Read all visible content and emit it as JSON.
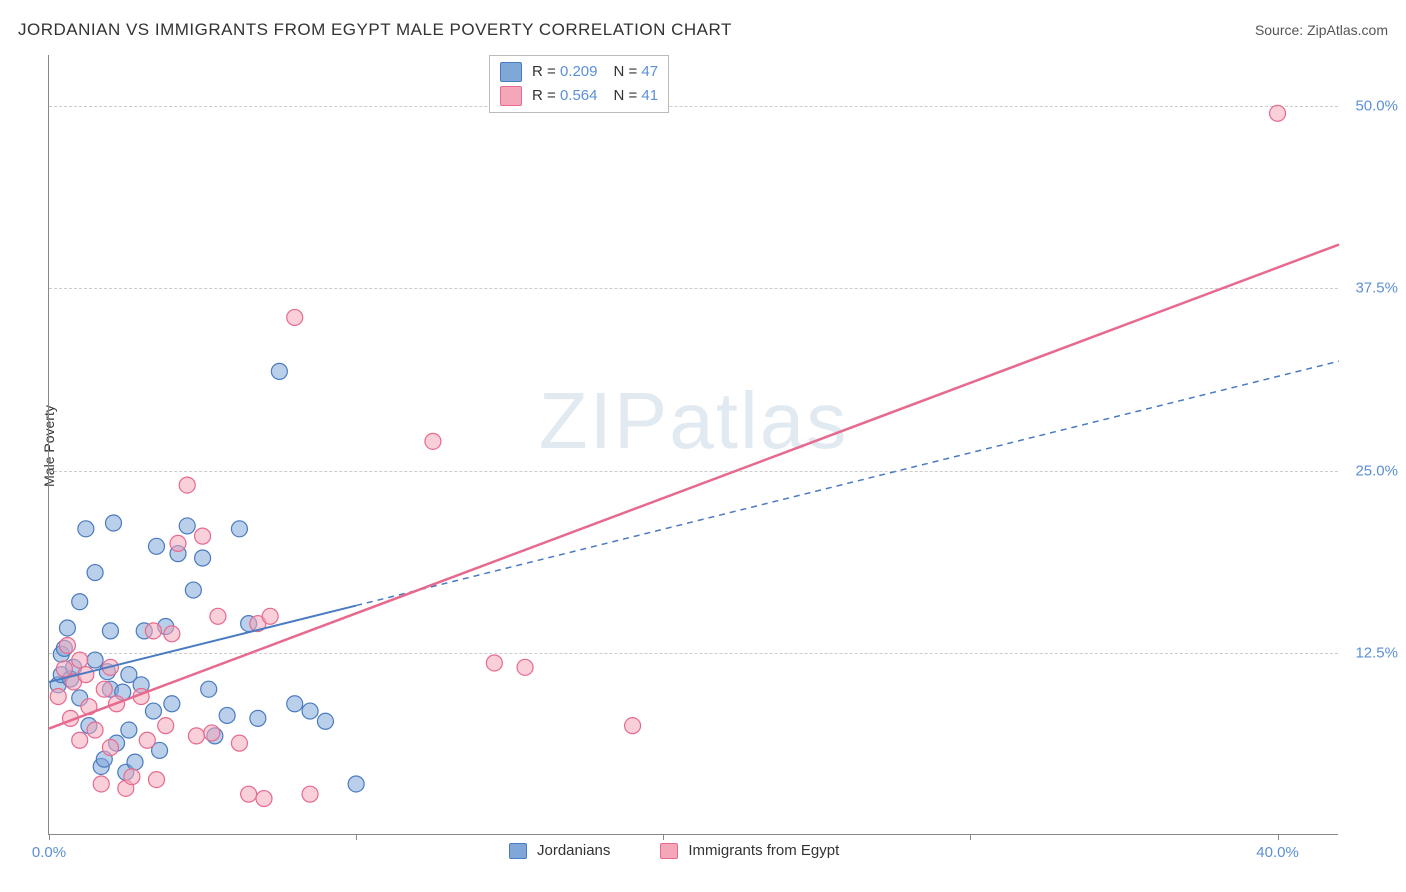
{
  "title": "JORDANIAN VS IMMIGRANTS FROM EGYPT MALE POVERTY CORRELATION CHART",
  "source_label": "Source: ZipAtlas.com",
  "y_axis_label": "Male Poverty",
  "watermark": {
    "bold": "ZIP",
    "light": "atlas"
  },
  "chart": {
    "type": "scatter",
    "background_color": "#ffffff",
    "grid_color": "#cccccc",
    "axis_color": "#888888",
    "xlim": [
      0,
      42
    ],
    "ylim": [
      0,
      53.5
    ],
    "x_ticks": [
      0,
      10,
      20,
      30,
      40
    ],
    "y_ticks": [
      12.5,
      25.0,
      37.5,
      50.0
    ],
    "x_tick_labels": [
      "0.0%",
      "",
      "",
      "",
      "40.0%"
    ],
    "y_tick_labels": [
      "12.5%",
      "25.0%",
      "37.5%",
      "50.0%"
    ],
    "marker_radius": 8,
    "marker_opacity": 0.55,
    "series": [
      {
        "key": "jordanians",
        "name": "Jordanians",
        "color": "#7fa8d9",
        "stroke": "#4a7bc0",
        "r_value": "0.209",
        "n_value": "47",
        "trend": {
          "x1": 0,
          "y1": 10.5,
          "x2": 42,
          "y2": 32.5,
          "solid_until_x": 10,
          "dash": "6,5",
          "width": 2
        },
        "points": [
          [
            0.3,
            10.3
          ],
          [
            0.4,
            11.0
          ],
          [
            0.4,
            12.4
          ],
          [
            0.5,
            12.8
          ],
          [
            0.6,
            14.2
          ],
          [
            0.7,
            10.7
          ],
          [
            0.8,
            11.5
          ],
          [
            1.0,
            9.4
          ],
          [
            1.0,
            16.0
          ],
          [
            1.2,
            21.0
          ],
          [
            1.3,
            7.5
          ],
          [
            1.5,
            12.0
          ],
          [
            1.5,
            18.0
          ],
          [
            1.7,
            4.7
          ],
          [
            1.8,
            5.2
          ],
          [
            1.9,
            11.2
          ],
          [
            2.0,
            10.0
          ],
          [
            2.0,
            14.0
          ],
          [
            2.1,
            21.4
          ],
          [
            2.2,
            6.3
          ],
          [
            2.4,
            9.8
          ],
          [
            2.5,
            4.3
          ],
          [
            2.6,
            7.2
          ],
          [
            2.6,
            11.0
          ],
          [
            2.8,
            5.0
          ],
          [
            3.0,
            10.3
          ],
          [
            3.1,
            14.0
          ],
          [
            3.4,
            8.5
          ],
          [
            3.5,
            19.8
          ],
          [
            3.6,
            5.8
          ],
          [
            3.8,
            14.3
          ],
          [
            4.0,
            9.0
          ],
          [
            4.2,
            19.3
          ],
          [
            4.5,
            21.2
          ],
          [
            4.7,
            16.8
          ],
          [
            5.0,
            19.0
          ],
          [
            5.2,
            10.0
          ],
          [
            5.4,
            6.8
          ],
          [
            5.8,
            8.2
          ],
          [
            6.2,
            21.0
          ],
          [
            6.5,
            14.5
          ],
          [
            6.8,
            8.0
          ],
          [
            7.5,
            31.8
          ],
          [
            8.0,
            9.0
          ],
          [
            8.5,
            8.5
          ],
          [
            9.0,
            7.8
          ],
          [
            10.0,
            3.5
          ]
        ]
      },
      {
        "key": "egypt",
        "name": "Immigrants from Egypt",
        "color": "#f4a7b9",
        "stroke": "#e76a8e",
        "r_value": "0.564",
        "n_value": "41",
        "trend": {
          "x1": 0,
          "y1": 7.3,
          "x2": 42,
          "y2": 40.5,
          "solid_until_x": 42,
          "dash": "",
          "width": 2.5
        },
        "points": [
          [
            0.3,
            9.5
          ],
          [
            0.5,
            11.4
          ],
          [
            0.6,
            13.0
          ],
          [
            0.7,
            8.0
          ],
          [
            0.8,
            10.5
          ],
          [
            1.0,
            12.0
          ],
          [
            1.0,
            6.5
          ],
          [
            1.2,
            11.0
          ],
          [
            1.3,
            8.8
          ],
          [
            1.5,
            7.2
          ],
          [
            1.7,
            3.5
          ],
          [
            1.8,
            10.0
          ],
          [
            2.0,
            6.0
          ],
          [
            2.0,
            11.5
          ],
          [
            2.2,
            9.0
          ],
          [
            2.5,
            3.2
          ],
          [
            2.7,
            4.0
          ],
          [
            3.0,
            9.5
          ],
          [
            3.2,
            6.5
          ],
          [
            3.4,
            14.0
          ],
          [
            3.5,
            3.8
          ],
          [
            3.8,
            7.5
          ],
          [
            4.0,
            13.8
          ],
          [
            4.2,
            20.0
          ],
          [
            4.5,
            24.0
          ],
          [
            4.8,
            6.8
          ],
          [
            5.0,
            20.5
          ],
          [
            5.3,
            7.0
          ],
          [
            5.5,
            15.0
          ],
          [
            6.2,
            6.3
          ],
          [
            6.5,
            2.8
          ],
          [
            6.8,
            14.5
          ],
          [
            7.0,
            2.5
          ],
          [
            7.2,
            15.0
          ],
          [
            8.0,
            35.5
          ],
          [
            8.5,
            2.8
          ],
          [
            12.5,
            27.0
          ],
          [
            14.5,
            11.8
          ],
          [
            15.5,
            11.5
          ],
          [
            19.0,
            7.5
          ],
          [
            40.0,
            49.5
          ]
        ]
      }
    ]
  },
  "top_legend": {
    "r_label": "R =",
    "n_label": "N ="
  },
  "bottom_legend": {
    "label1": "Jordanians",
    "label2": "Immigrants from Egypt"
  }
}
